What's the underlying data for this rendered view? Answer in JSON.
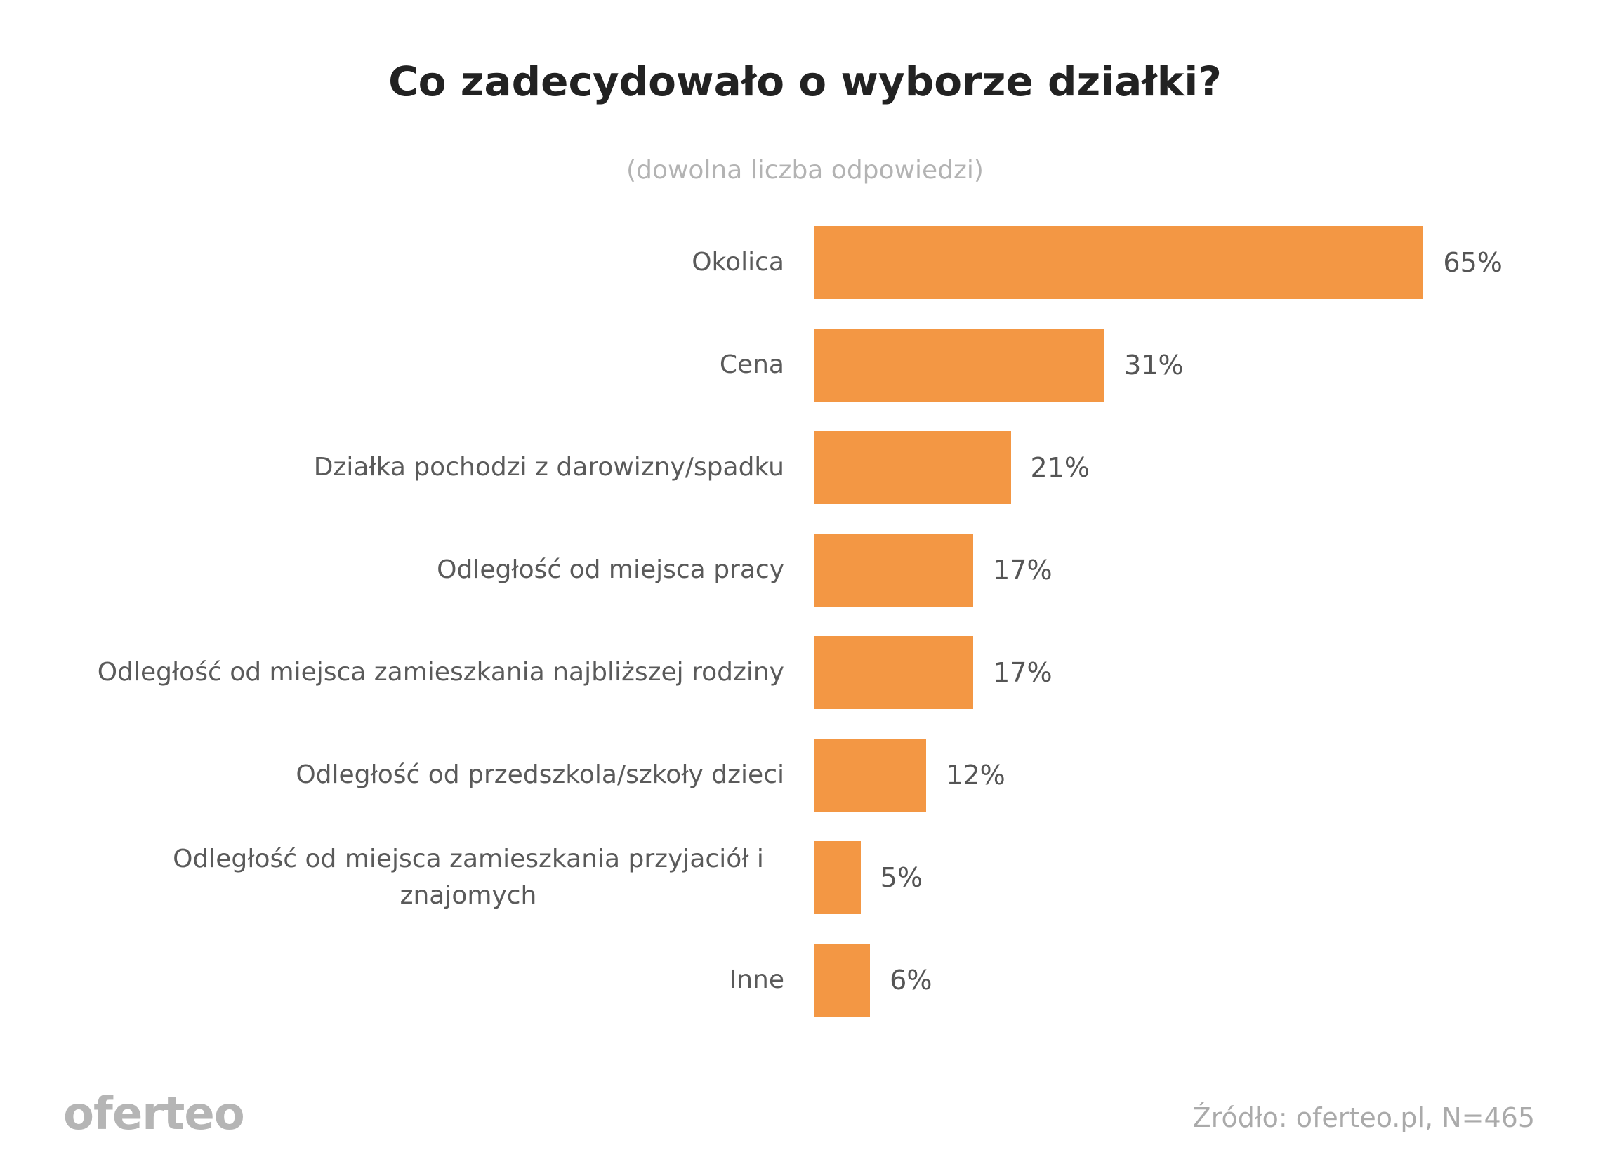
{
  "chart_data": {
    "type": "bar",
    "title": "Co zadecydowało o wyborze działki?",
    "subtitle": "(dowolna liczba odpowiedzi)",
    "categories": [
      "Okolica",
      "Cena",
      "Działka pochodzi z darowizny/spadku",
      "Odległość od miejsca pracy",
      "Odległość od miejsca zamieszkania najbliższej rodziny",
      "Odległość od przedszkola/szkoły dzieci",
      "Odległość od miejsca zamieszkania przyjaciół i znajomych",
      "Inne"
    ],
    "values": [
      65,
      31,
      21,
      17,
      17,
      12,
      5,
      6
    ],
    "value_labels": [
      "65%",
      "31%",
      "21%",
      "17%",
      "17%",
      "12%",
      "5%",
      "6%"
    ],
    "color": "#f39744",
    "source": "Źródło: oferteo.pl, N=465",
    "logo": "oferteo"
  }
}
